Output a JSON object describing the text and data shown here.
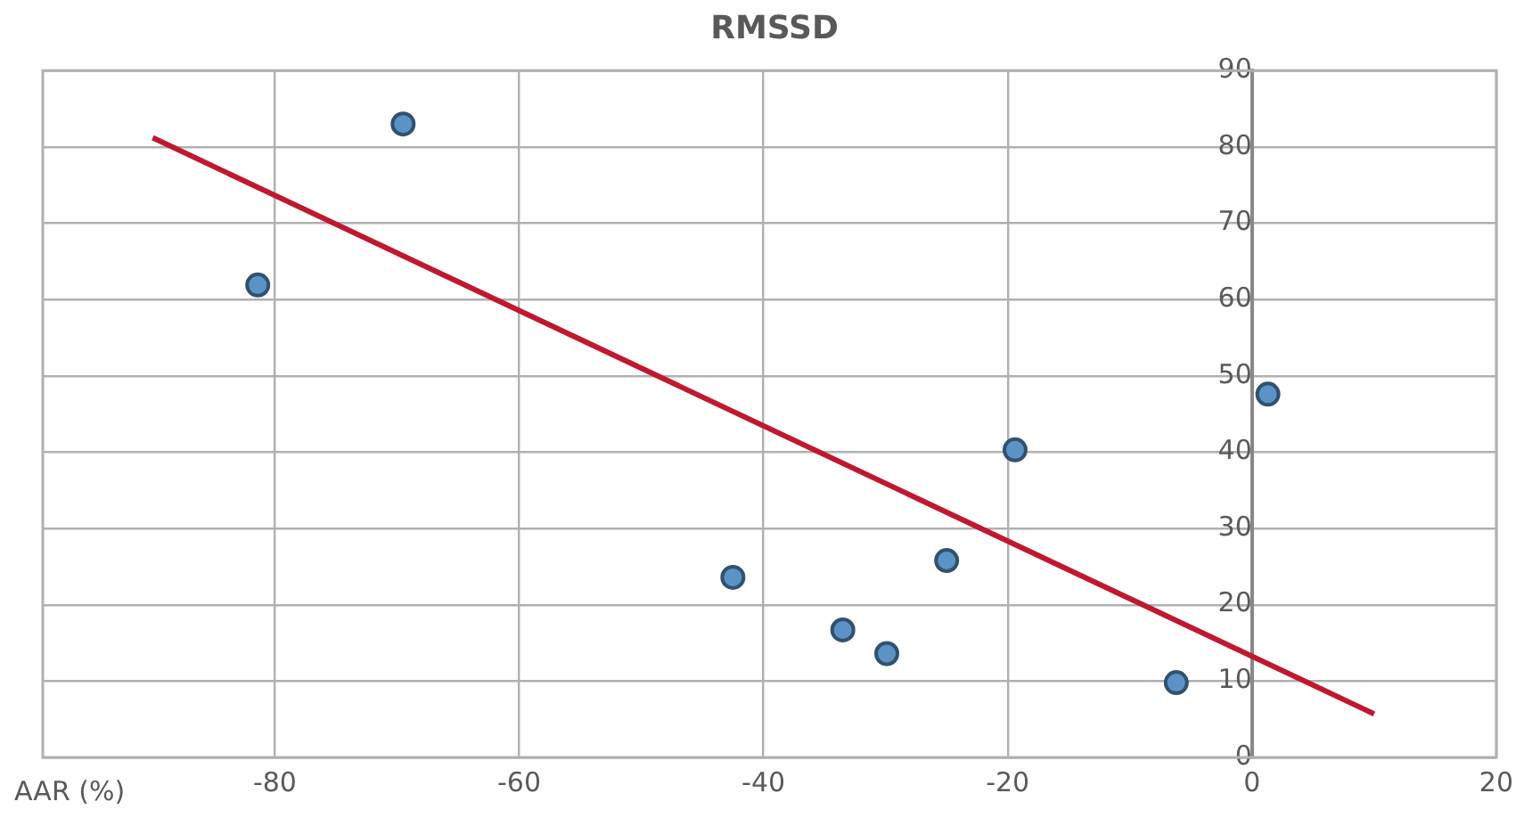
{
  "chart_data": {
    "type": "scatter",
    "title": "RMSSD",
    "xlabel": "AAR (%)",
    "xlim": [
      -99,
      20
    ],
    "xticks": [
      -80,
      -60,
      -40,
      -20,
      0,
      20
    ],
    "ylim": [
      0,
      90
    ],
    "yticks": [
      0,
      10,
      20,
      30,
      40,
      50,
      60,
      70,
      80,
      90
    ],
    "grid": true,
    "legend": false,
    "marker": "circle",
    "series": [
      {
        "type": "scatter",
        "color": "#5b93c7",
        "x": [
          -81.4,
          -69.5,
          -42.5,
          -33.5,
          -29.9,
          -25.0,
          -19.4,
          -6.2,
          1.3
        ],
        "values": [
          61.9,
          83,
          23.6,
          16.7,
          13.6,
          25.8,
          40.3,
          9.8,
          47.6
        ]
      },
      {
        "type": "line",
        "color": "#c0182f",
        "x": [
          -90,
          10
        ],
        "values": [
          81.2,
          5.7
        ],
        "marker": "none",
        "line_style": "solid"
      }
    ]
  }
}
